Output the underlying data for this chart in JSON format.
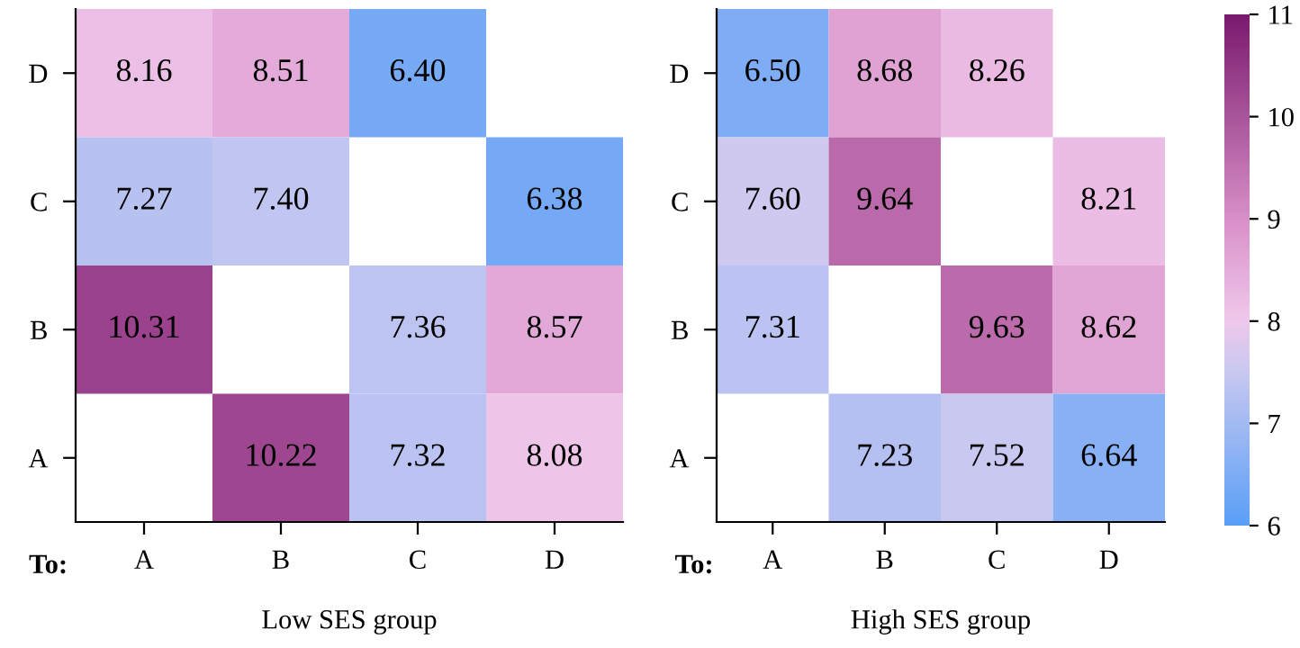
{
  "chart_data": [
    {
      "type": "heatmap",
      "xlabel": "Low SES group",
      "annotations": [
        "To:"
      ],
      "categories": [
        "A",
        "B",
        "C",
        "D"
      ],
      "y_categories": [
        "D",
        "C",
        "B",
        "A"
      ],
      "cells": [
        [
          8.16,
          8.51,
          6.4,
          null
        ],
        [
          7.27,
          7.4,
          null,
          6.38
        ],
        [
          10.31,
          null,
          7.36,
          8.57
        ],
        [
          null,
          10.22,
          7.32,
          8.08
        ]
      ],
      "cell_labels": [
        [
          "8.16",
          "8.51",
          "6.40",
          null
        ],
        [
          "7.27",
          "7.40",
          null,
          "6.38"
        ],
        [
          "10.31",
          null,
          "7.36",
          "8.57"
        ],
        [
          null,
          "10.22",
          "7.32",
          "8.08"
        ]
      ]
    },
    {
      "type": "heatmap",
      "xlabel": "High SES group",
      "annotations": [
        "To:"
      ],
      "categories": [
        "A",
        "B",
        "C",
        "D"
      ],
      "y_categories": [
        "D",
        "C",
        "B",
        "A"
      ],
      "cells": [
        [
          6.5,
          8.68,
          8.26,
          null
        ],
        [
          7.6,
          9.64,
          null,
          8.21
        ],
        [
          7.31,
          null,
          9.63,
          8.62
        ],
        [
          null,
          7.23,
          7.52,
          6.64
        ]
      ],
      "cell_labels": [
        [
          "6.50",
          "8.68",
          "8.26",
          null
        ],
        [
          "7.60",
          "9.64",
          null,
          "8.21"
        ],
        [
          "7.31",
          null,
          "9.63",
          "8.62"
        ],
        [
          null,
          "7.23",
          "7.52",
          "6.64"
        ]
      ],
      "clim": [
        6,
        11
      ],
      "cticks": [
        6,
        7,
        8,
        9,
        10,
        11
      ]
    }
  ]
}
